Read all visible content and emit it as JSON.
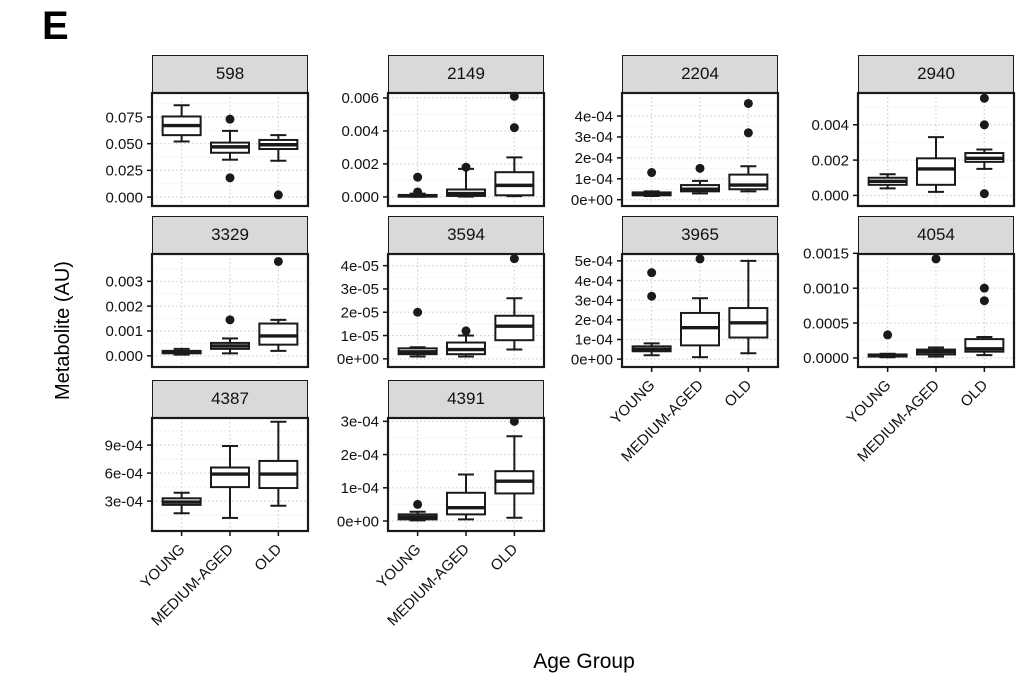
{
  "figure_label": "E",
  "y_axis_title": "Metabolite (AU)",
  "x_axis_title": "Age Group",
  "categories": [
    "YOUNG",
    "MEDIUM-AGED",
    "OLD"
  ],
  "colors": {
    "strip_bg": "#d9d9d9",
    "strip_border": "#1a1a1a",
    "panel_bg": "#ffffff",
    "panel_border": "#1a1a1a",
    "grid_major": "#d2d2d2",
    "grid_minor": "#e8e8e8",
    "box_stroke": "#1a1a1a",
    "box_fill": "#ffffff",
    "outlier_fill": "#1a1a1a",
    "text": "#111111"
  },
  "chart_data": {
    "type": "boxplot-facets",
    "facet_variable": "metabolite id",
    "x_categories": [
      "YOUNG",
      "MEDIUM-AGED",
      "OLD"
    ],
    "facets": [
      {
        "title": "598",
        "col": 0,
        "row": 0,
        "show_x_labels": false,
        "ylim": [
          -0.0084,
          0.0975
        ],
        "yticks": [
          {
            "v": 0.0,
            "label": "0.000"
          },
          {
            "v": 0.025,
            "label": "0.025"
          },
          {
            "v": 0.05,
            "label": "0.050"
          },
          {
            "v": 0.075,
            "label": "0.075"
          }
        ],
        "groups": [
          {
            "category": "YOUNG",
            "lo": 0.052,
            "q1": 0.058,
            "med": 0.067,
            "q3": 0.0755,
            "hi": 0.086,
            "outliers": []
          },
          {
            "category": "MEDIUM-AGED",
            "lo": 0.035,
            "q1": 0.0415,
            "med": 0.047,
            "q3": 0.051,
            "hi": 0.062,
            "outliers": [
              0.073,
              0.018
            ]
          },
          {
            "category": "OLD",
            "lo": 0.034,
            "q1": 0.045,
            "med": 0.049,
            "q3": 0.0535,
            "hi": 0.058,
            "outliers": [
              0.002
            ]
          }
        ]
      },
      {
        "title": "2149",
        "col": 1,
        "row": 0,
        "show_x_labels": false,
        "ylim": [
          -0.00055,
          0.0063
        ],
        "yticks": [
          {
            "v": 0.0,
            "label": "0.000"
          },
          {
            "v": 0.002,
            "label": "0.002"
          },
          {
            "v": 0.004,
            "label": "0.004"
          },
          {
            "v": 0.006,
            "label": "0.006"
          }
        ],
        "groups": [
          {
            "category": "YOUNG",
            "lo": 1e-05,
            "q1": 2e-05,
            "med": 6e-05,
            "q3": 0.00012,
            "hi": 0.0002,
            "outliers": [
              0.0003,
              0.0012
            ]
          },
          {
            "category": "MEDIUM-AGED",
            "lo": 2e-05,
            "q1": 6e-05,
            "med": 0.0002,
            "q3": 0.00045,
            "hi": 0.0017,
            "outliers": [
              0.0018
            ]
          },
          {
            "category": "OLD",
            "lo": 5e-05,
            "q1": 0.0001,
            "med": 0.0007,
            "q3": 0.0015,
            "hi": 0.0024,
            "outliers": [
              0.0042,
              0.0061
            ]
          }
        ]
      },
      {
        "title": "2204",
        "col": 2,
        "row": 0,
        "show_x_labels": false,
        "ylim": [
          -3e-05,
          0.00051
        ],
        "yticks": [
          {
            "v": 0,
            "label": "0e+00"
          },
          {
            "v": 0.0001,
            "label": "1e-04"
          },
          {
            "v": 0.0002,
            "label": "2e-04"
          },
          {
            "v": 0.0003,
            "label": "3e-04"
          },
          {
            "v": 0.0004,
            "label": "4e-04"
          }
        ],
        "groups": [
          {
            "category": "YOUNG",
            "lo": 1.8e-05,
            "q1": 2.1e-05,
            "med": 2.8e-05,
            "q3": 3.5e-05,
            "hi": 4e-05,
            "outliers": [
              0.00013
            ]
          },
          {
            "category": "MEDIUM-AGED",
            "lo": 3e-05,
            "q1": 4e-05,
            "med": 5e-05,
            "q3": 7e-05,
            "hi": 9e-05,
            "outliers": [
              0.00015
            ]
          },
          {
            "category": "OLD",
            "lo": 4e-05,
            "q1": 5e-05,
            "med": 7e-05,
            "q3": 0.00012,
            "hi": 0.00016,
            "outliers": [
              0.00032,
              0.00046
            ]
          }
        ]
      },
      {
        "title": "2940",
        "col": 3,
        "row": 0,
        "show_x_labels": false,
        "ylim": [
          -0.0006,
          0.0058
        ],
        "yticks": [
          {
            "v": 0.0,
            "label": "0.000"
          },
          {
            "v": 0.002,
            "label": "0.002"
          },
          {
            "v": 0.004,
            "label": "0.004"
          }
        ],
        "groups": [
          {
            "category": "YOUNG",
            "lo": 0.0004,
            "q1": 0.0006,
            "med": 0.0008,
            "q3": 0.001,
            "hi": 0.0012,
            "outliers": []
          },
          {
            "category": "MEDIUM-AGED",
            "lo": 0.0002,
            "q1": 0.0006,
            "med": 0.0015,
            "q3": 0.0021,
            "hi": 0.0033,
            "outliers": []
          },
          {
            "category": "OLD",
            "lo": 0.0015,
            "q1": 0.0019,
            "med": 0.0021,
            "q3": 0.0024,
            "hi": 0.0026,
            "outliers": [
              0.0055,
              0.004,
              0.0001
            ]
          }
        ]
      },
      {
        "title": "3329",
        "col": 0,
        "row": 1,
        "show_x_labels": false,
        "ylim": [
          -0.00045,
          0.0041
        ],
        "yticks": [
          {
            "v": 0.0,
            "label": "0.000"
          },
          {
            "v": 0.001,
            "label": "0.001"
          },
          {
            "v": 0.002,
            "label": "0.002"
          },
          {
            "v": 0.003,
            "label": "0.003"
          }
        ],
        "groups": [
          {
            "category": "YOUNG",
            "lo": 5e-05,
            "q1": 0.0001,
            "med": 0.00015,
            "q3": 0.0002,
            "hi": 0.00028,
            "outliers": []
          },
          {
            "category": "MEDIUM-AGED",
            "lo": 0.0001,
            "q1": 0.00028,
            "med": 0.0004,
            "q3": 0.00052,
            "hi": 0.0007,
            "outliers": [
              0.00145
            ]
          },
          {
            "category": "OLD",
            "lo": 0.0002,
            "q1": 0.00045,
            "med": 0.0008,
            "q3": 0.0013,
            "hi": 0.00145,
            "outliers": [
              0.0038
            ]
          }
        ]
      },
      {
        "title": "3594",
        "col": 1,
        "row": 1,
        "show_x_labels": false,
        "ylim": [
          -3.5e-06,
          4.5e-05
        ],
        "yticks": [
          {
            "v": 0,
            "label": "0e+00"
          },
          {
            "v": 1e-05,
            "label": "1e-05"
          },
          {
            "v": 2e-05,
            "label": "2e-05"
          },
          {
            "v": 3e-05,
            "label": "3e-05"
          },
          {
            "v": 4e-05,
            "label": "4e-05"
          }
        ],
        "groups": [
          {
            "category": "YOUNG",
            "lo": 1e-06,
            "q1": 2e-06,
            "med": 3e-06,
            "q3": 4.5e-06,
            "hi": 5e-06,
            "outliers": [
              2e-05
            ]
          },
          {
            "category": "MEDIUM-AGED",
            "lo": 1e-06,
            "q1": 2e-06,
            "med": 4e-06,
            "q3": 7e-06,
            "hi": 1e-05,
            "outliers": [
              1.2e-05
            ]
          },
          {
            "category": "OLD",
            "lo": 4e-06,
            "q1": 8e-06,
            "med": 1.4e-05,
            "q3": 1.85e-05,
            "hi": 2.6e-05,
            "outliers": [
              4.3e-05
            ]
          }
        ]
      },
      {
        "title": "3965",
        "col": 2,
        "row": 1,
        "show_x_labels": true,
        "ylim": [
          -4e-05,
          0.000535
        ],
        "yticks": [
          {
            "v": 0,
            "label": "0e+00"
          },
          {
            "v": 0.0001,
            "label": "1e-04"
          },
          {
            "v": 0.0002,
            "label": "2e-04"
          },
          {
            "v": 0.0003,
            "label": "3e-04"
          },
          {
            "v": 0.0004,
            "label": "4e-04"
          },
          {
            "v": 0.0005,
            "label": "5e-04"
          }
        ],
        "groups": [
          {
            "category": "YOUNG",
            "lo": 2e-05,
            "q1": 4e-05,
            "med": 5e-05,
            "q3": 6.5e-05,
            "hi": 8e-05,
            "outliers": [
              0.00032,
              0.00044
            ]
          },
          {
            "category": "MEDIUM-AGED",
            "lo": 1e-05,
            "q1": 7e-05,
            "med": 0.00016,
            "q3": 0.000235,
            "hi": 0.00031,
            "outliers": [
              0.00051
            ]
          },
          {
            "category": "OLD",
            "lo": 3e-05,
            "q1": 0.00011,
            "med": 0.000185,
            "q3": 0.00026,
            "hi": 0.0005,
            "outliers": []
          }
        ]
      },
      {
        "title": "4054",
        "col": 3,
        "row": 1,
        "show_x_labels": true,
        "ylim": [
          -0.00013,
          0.00149
        ],
        "yticks": [
          {
            "v": 0.0,
            "label": "0.0000"
          },
          {
            "v": 0.0005,
            "label": "0.0005"
          },
          {
            "v": 0.001,
            "label": "0.0010"
          },
          {
            "v": 0.0015,
            "label": "0.0015"
          }
        ],
        "groups": [
          {
            "category": "YOUNG",
            "lo": 1e-05,
            "q1": 2e-05,
            "med": 3e-05,
            "q3": 5e-05,
            "hi": 6e-05,
            "outliers": [
              0.00033
            ]
          },
          {
            "category": "MEDIUM-AGED",
            "lo": 2e-05,
            "q1": 5e-05,
            "med": 9e-05,
            "q3": 0.00012,
            "hi": 0.00015,
            "outliers": [
              0.00142
            ]
          },
          {
            "category": "OLD",
            "lo": 4e-05,
            "q1": 9e-05,
            "med": 0.00013,
            "q3": 0.00027,
            "hi": 0.0003,
            "outliers": [
              0.00082,
              0.001
            ]
          }
        ]
      },
      {
        "title": "4387",
        "col": 0,
        "row": 2,
        "show_x_labels": true,
        "ylim": [
          -2e-05,
          0.00119
        ],
        "yticks": [
          {
            "v": 0.0003,
            "label": "3e-04"
          },
          {
            "v": 0.0006,
            "label": "6e-04"
          },
          {
            "v": 0.0009,
            "label": "9e-04"
          }
        ],
        "groups": [
          {
            "category": "YOUNG",
            "lo": 0.00017,
            "q1": 0.00026,
            "med": 0.00029,
            "q3": 0.00033,
            "hi": 0.00039,
            "outliers": []
          },
          {
            "category": "MEDIUM-AGED",
            "lo": 0.00012,
            "q1": 0.00045,
            "med": 0.00059,
            "q3": 0.00066,
            "hi": 0.00089,
            "outliers": []
          },
          {
            "category": "OLD",
            "lo": 0.00025,
            "q1": 0.00044,
            "med": 0.00059,
            "q3": 0.00073,
            "hi": 0.00115,
            "outliers": []
          }
        ]
      },
      {
        "title": "4391",
        "col": 1,
        "row": 2,
        "show_x_labels": true,
        "ylim": [
          -3e-05,
          0.00031
        ],
        "yticks": [
          {
            "v": 0,
            "label": "0e+00"
          },
          {
            "v": 0.0001,
            "label": "1e-04"
          },
          {
            "v": 0.0002,
            "label": "2e-04"
          },
          {
            "v": 0.0003,
            "label": "3e-04"
          }
        ],
        "groups": [
          {
            "category": "YOUNG",
            "lo": 2e-06,
            "q1": 5e-06,
            "med": 1.2e-05,
            "q3": 2e-05,
            "hi": 2.8e-05,
            "outliers": [
              5e-05
            ]
          },
          {
            "category": "MEDIUM-AGED",
            "lo": 5e-06,
            "q1": 2e-05,
            "med": 4e-05,
            "q3": 8.5e-05,
            "hi": 0.00014,
            "outliers": []
          },
          {
            "category": "OLD",
            "lo": 1e-05,
            "q1": 8.3e-05,
            "med": 0.00012,
            "q3": 0.00015,
            "hi": 0.000255,
            "outliers": [
              0.0003
            ]
          }
        ]
      }
    ]
  }
}
